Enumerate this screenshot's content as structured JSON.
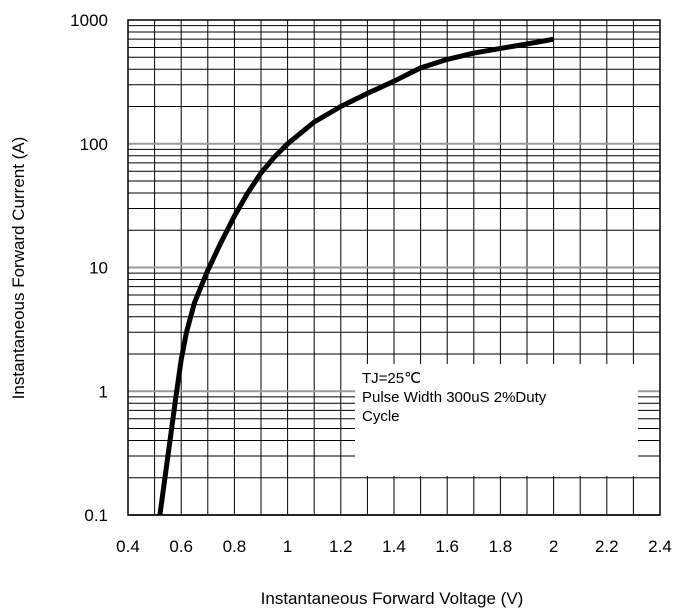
{
  "chart_data": {
    "type": "line",
    "xlabel": "Instantaneous Forward Voltage (V)",
    "ylabel": "Instantaneous Forward Current (A)",
    "xlim": [
      0.4,
      2.4
    ],
    "ylim": [
      0.1,
      1000
    ],
    "y_scale": "log",
    "x_ticks": [
      "0.4",
      "0.6",
      "0.8",
      "1",
      "1.2",
      "1.4",
      "1.6",
      "1.8",
      "2",
      "2.2",
      "2.4"
    ],
    "y_ticks": [
      "0.1",
      "1",
      "10",
      "100",
      "1000"
    ],
    "grid": true,
    "annotation": [
      "TJ=25℃",
      "Pulse Width 300uS 2%Duty",
      "Cycle"
    ],
    "series": [
      {
        "x": [
          0.52,
          0.55,
          0.58,
          0.6,
          0.62,
          0.65,
          0.7,
          0.75,
          0.8,
          0.85,
          0.9,
          0.95,
          1.0,
          1.1,
          1.2,
          1.3,
          1.4,
          1.5,
          1.6,
          1.7,
          1.8,
          1.9,
          2.0
        ],
        "y": [
          0.1,
          0.3,
          0.9,
          1.8,
          3.0,
          5.2,
          9.5,
          16,
          26,
          40,
          58,
          78,
          100,
          150,
          200,
          255,
          320,
          410,
          480,
          540,
          590,
          640,
          700
        ]
      }
    ]
  }
}
